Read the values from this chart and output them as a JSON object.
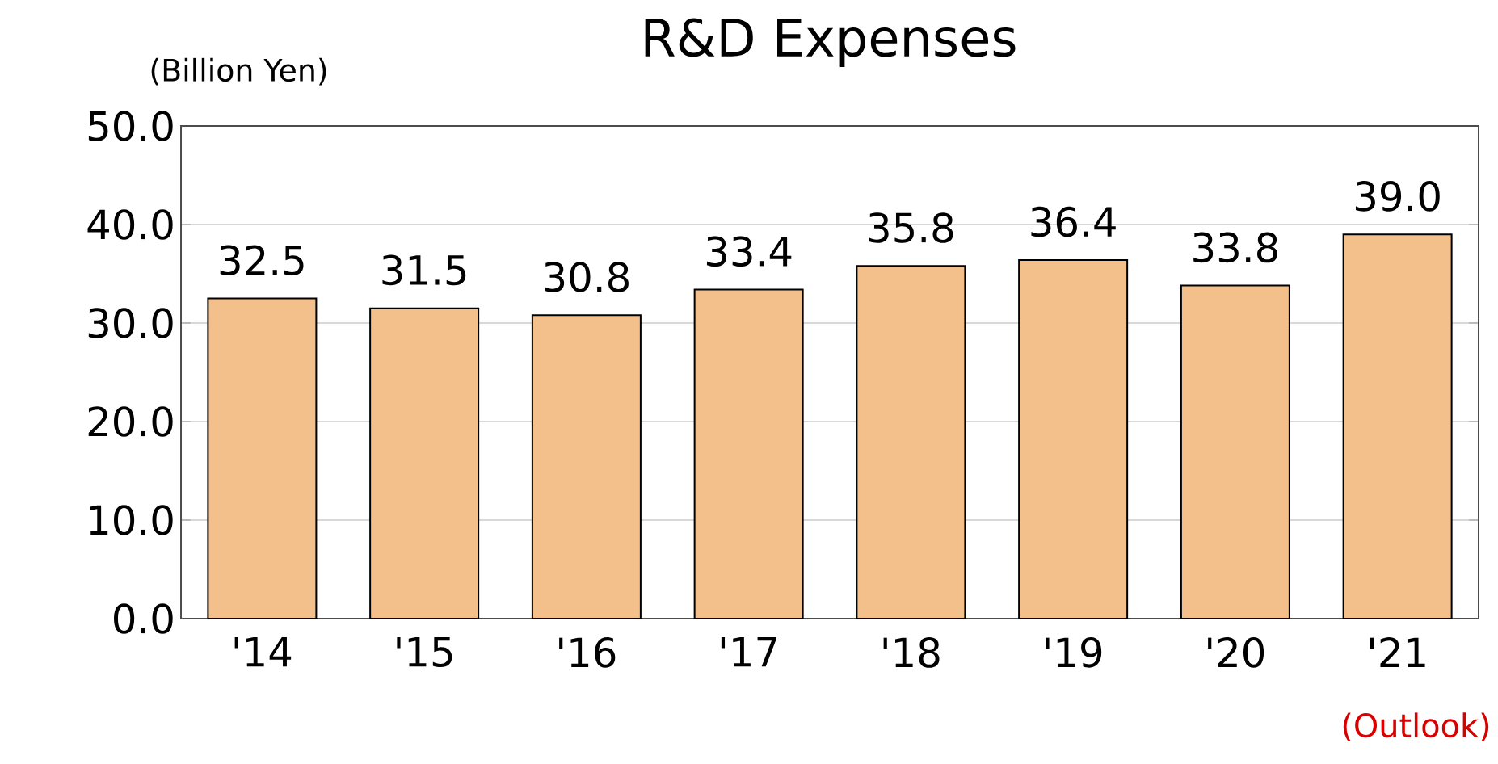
{
  "chart_data": {
    "type": "bar",
    "title": "R&D Expenses",
    "ylabel": "(Billion Yen)",
    "categories": [
      "'14",
      "'15",
      "'16",
      "'17",
      "'18",
      "'19",
      "'20",
      "'21"
    ],
    "values": [
      32.5,
      31.5,
      30.8,
      33.4,
      35.8,
      36.4,
      33.8,
      39.0
    ],
    "value_labels": [
      "32.5",
      "31.5",
      "30.8",
      "33.4",
      "35.8",
      "36.4",
      "33.8",
      "39.0"
    ],
    "color": "#f3c08c",
    "ylim": [
      0,
      50
    ],
    "yticks": [
      {
        "value": 0,
        "label": "0.0"
      },
      {
        "value": 10,
        "label": "10.0"
      },
      {
        "value": 20,
        "label": "20.0"
      },
      {
        "value": 30,
        "label": "30.0"
      },
      {
        "value": 40,
        "label": "40.0"
      },
      {
        "value": 50,
        "label": "50.0"
      }
    ],
    "grid": "y",
    "annotations": [
      "(Outlook)"
    ]
  }
}
